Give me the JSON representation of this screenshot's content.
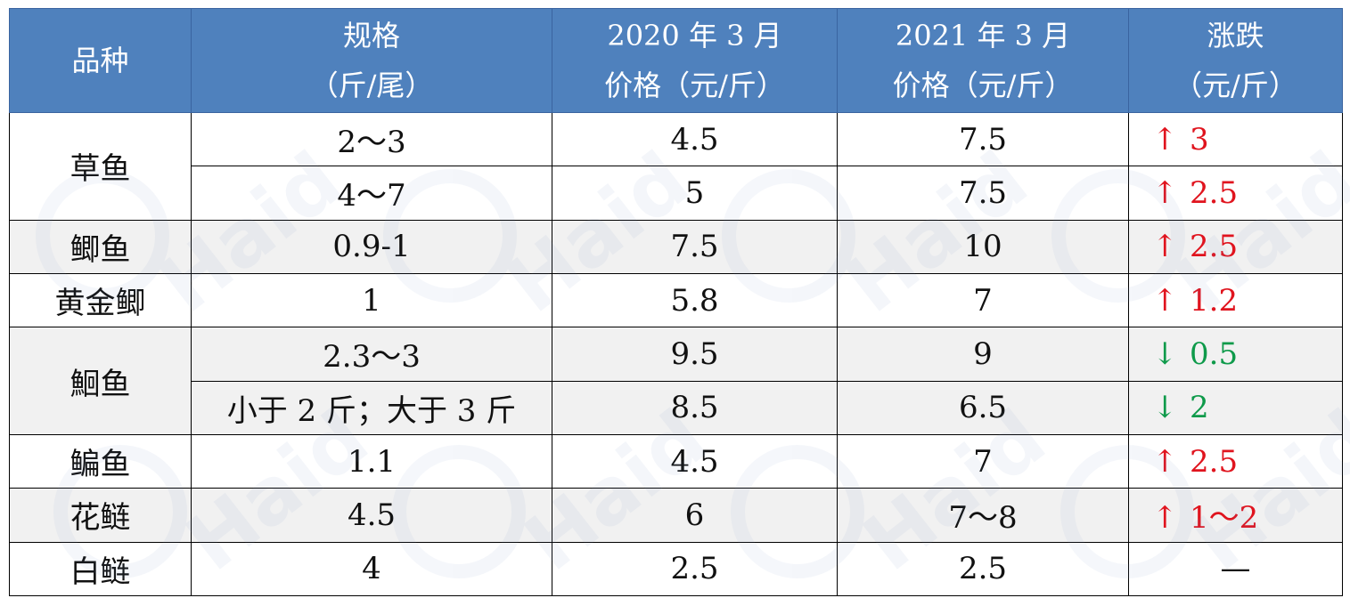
{
  "chart_data": {
    "type": "table",
    "columns": [
      {
        "line1": "品种",
        "line2": ""
      },
      {
        "line1": "规格",
        "line2": "（斤/尾）"
      },
      {
        "line1": "2020 年 3 月",
        "line2": "价格（元/斤）"
      },
      {
        "line1": "2021 年 3 月",
        "line2": "价格（元/斤）"
      },
      {
        "line1": "涨跌",
        "line2": "（元/斤）"
      }
    ],
    "rows": [
      {
        "variety": "草鱼",
        "spec": "2～3",
        "price_2020": "4.5",
        "price_2021": "7.5",
        "change": {
          "dir": "up",
          "arrow": "↑",
          "value": "3"
        }
      },
      {
        "variety": "草鱼",
        "spec": "4～7",
        "price_2020": "5",
        "price_2021": "7.5",
        "change": {
          "dir": "up",
          "arrow": "↑",
          "value": "2.5"
        }
      },
      {
        "variety": "鲫鱼",
        "spec": "0.9-1",
        "price_2020": "7.5",
        "price_2021": "10",
        "change": {
          "dir": "up",
          "arrow": "↑",
          "value": "2.5"
        }
      },
      {
        "variety": "黄金鲫",
        "spec": "1",
        "price_2020": "5.8",
        "price_2021": "7",
        "change": {
          "dir": "up",
          "arrow": "↑",
          "value": "1.2"
        }
      },
      {
        "variety": "鮰鱼",
        "spec": "2.3～3",
        "price_2020": "9.5",
        "price_2021": "9",
        "change": {
          "dir": "down",
          "arrow": "↓",
          "value": "0.5"
        }
      },
      {
        "variety": "鮰鱼",
        "spec": "小于 2 斤；大于 3 斤",
        "price_2020": "8.5",
        "price_2021": "6.5",
        "change": {
          "dir": "down",
          "arrow": "↓",
          "value": "2"
        }
      },
      {
        "variety": "鳊鱼",
        "spec": "1.1",
        "price_2020": "4.5",
        "price_2021": "7",
        "change": {
          "dir": "up",
          "arrow": "↑",
          "value": "2.5"
        }
      },
      {
        "variety": "花鲢",
        "spec": "4.5",
        "price_2020": "6",
        "price_2021": "7～8",
        "change": {
          "dir": "up",
          "arrow": "↑",
          "value": "1～2"
        }
      },
      {
        "variety": "白鲢",
        "spec": "4",
        "price_2020": "2.5",
        "price_2021": "2.5",
        "change": {
          "dir": "flat",
          "arrow": "",
          "value": "—"
        }
      }
    ],
    "colors": {
      "header_bg": "#4f81bd",
      "header_text": "#ffffff",
      "up": "#e0141e",
      "down": "#0e9a4a",
      "alt_row_bg": "#f1f1f1"
    }
  },
  "watermark": {
    "text": "Haid"
  }
}
